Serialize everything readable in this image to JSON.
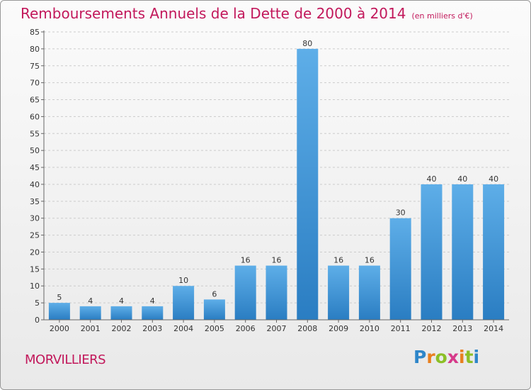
{
  "title": "Remboursements Annuels de la Dette de 2000 à 2014",
  "subtitle": "(en milliers d'€)",
  "commune": "MORVILLIERS",
  "logo": "Proxiti",
  "colors": {
    "title": "#c2185b",
    "bar_top": "#5eaee8",
    "bar_bottom": "#2a7dc2",
    "grid": "#cccccc"
  },
  "chart_data": {
    "type": "bar",
    "categories": [
      "2000",
      "2001",
      "2002",
      "2003",
      "2004",
      "2005",
      "2006",
      "2007",
      "2008",
      "2009",
      "2010",
      "2011",
      "2012",
      "2013",
      "2014"
    ],
    "values": [
      5,
      4,
      4,
      4,
      10,
      6,
      16,
      16,
      80,
      16,
      16,
      30,
      40,
      40,
      40
    ],
    "data_labels": [
      "5",
      "4",
      "4",
      "4",
      "10",
      "6",
      "16",
      "16",
      "80",
      "16",
      "16",
      "30",
      "40",
      "40",
      "40"
    ],
    "y_ticks": [
      0,
      5,
      10,
      15,
      20,
      25,
      30,
      35,
      40,
      45,
      50,
      55,
      60,
      65,
      70,
      75,
      80,
      85
    ],
    "ylim": [
      0,
      85
    ],
    "grid": true,
    "legend": "none"
  }
}
